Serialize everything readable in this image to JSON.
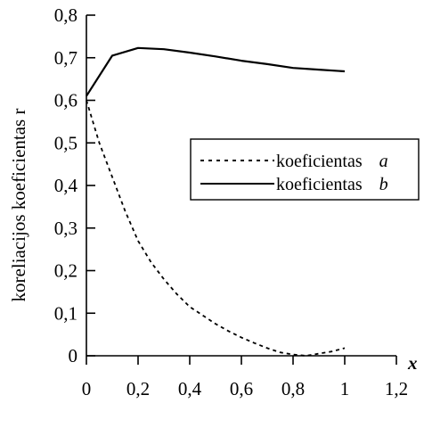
{
  "chart_data": {
    "type": "line",
    "xlabel": "x",
    "ylabel": "koreliacijos koeficientas r",
    "xlim": [
      0,
      1.2
    ],
    "ylim": [
      0,
      0.8
    ],
    "x_ticks": [
      "0",
      "0,2",
      "0,4",
      "0,6",
      "0,8",
      "1",
      "1,2"
    ],
    "y_ticks": [
      "0",
      "0,1",
      "0,2",
      "0,3",
      "0,4",
      "0,5",
      "0,6",
      "0,7",
      "0,8"
    ],
    "legend_position": "right",
    "series": [
      {
        "name": "koeficientas",
        "name_var": "a",
        "style": "dashed",
        "color": "#000000",
        "x": [
          0,
          0.05,
          0.1,
          0.15,
          0.2,
          0.25,
          0.3,
          0.35,
          0.4,
          0.45,
          0.5,
          0.55,
          0.6,
          0.65,
          0.7,
          0.75,
          0.8,
          0.85,
          0.9,
          0.95,
          1.0
        ],
        "y": [
          0.6,
          0.5,
          0.42,
          0.34,
          0.27,
          0.22,
          0.18,
          0.145,
          0.115,
          0.095,
          0.075,
          0.058,
          0.043,
          0.03,
          0.018,
          0.008,
          0.003,
          0.0,
          0.005,
          0.01,
          0.018
        ]
      },
      {
        "name": "koeficientas",
        "name_var": "b",
        "style": "solid",
        "color": "#000000",
        "x": [
          0,
          0.1,
          0.2,
          0.3,
          0.4,
          0.5,
          0.6,
          0.7,
          0.8,
          0.9,
          1.0
        ],
        "y": [
          0.61,
          0.705,
          0.723,
          0.72,
          0.712,
          0.703,
          0.693,
          0.685,
          0.676,
          0.672,
          0.668
        ]
      }
    ]
  }
}
